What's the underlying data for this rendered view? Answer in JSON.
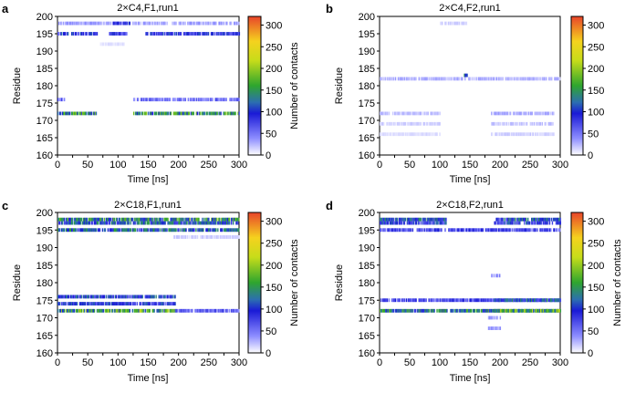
{
  "chart_data": [
    {
      "type": "heatmap",
      "panel": "a",
      "title": "2×C4,F1,run1",
      "xlabel": "Time [ns]",
      "ylabel": "Residue",
      "colorbar_label": "Number of contacts",
      "xlim": [
        0,
        300
      ],
      "ylim": [
        160,
        200
      ],
      "clim": [
        0,
        320
      ],
      "xticks": [
        0,
        25,
        50,
        75,
        100,
        125,
        150,
        175,
        200,
        225,
        250,
        275,
        300
      ],
      "xtick_labels": [
        "0",
        "50",
        "100",
        "150",
        "200",
        "250",
        "300"
      ],
      "ytick_labels": [
        "160",
        "165",
        "170",
        "175",
        "180",
        "185",
        "190",
        "195",
        "200"
      ],
      "cbar_tick_labels": [
        "0",
        "50",
        "100",
        "150",
        "200",
        "250",
        "300"
      ],
      "grid": false,
      "bands": [
        {
          "residue": 198,
          "t_start": 0,
          "t_end": 300,
          "level": 30
        },
        {
          "residue": 198,
          "t_start": 90,
          "t_end": 120,
          "level": 80
        },
        {
          "residue": 195,
          "t_start": 0,
          "t_end": 65,
          "level": 90
        },
        {
          "residue": 195,
          "t_start": 85,
          "t_end": 115,
          "level": 80
        },
        {
          "residue": 195,
          "t_start": 145,
          "t_end": 300,
          "level": 85
        },
        {
          "residue": 192,
          "t_start": 70,
          "t_end": 110,
          "level": 10
        },
        {
          "residue": 176,
          "t_start": 0,
          "t_end": 12,
          "level": 60
        },
        {
          "residue": 176,
          "t_start": 125,
          "t_end": 300,
          "level": 50
        },
        {
          "residue": 172,
          "t_start": 0,
          "t_end": 65,
          "level": 140
        },
        {
          "residue": 172,
          "t_start": 125,
          "t_end": 300,
          "level": 140
        }
      ]
    },
    {
      "type": "heatmap",
      "panel": "b",
      "title": "2×C4,F2,run1",
      "xlabel": "Time [ns]",
      "ylabel": "Residue",
      "colorbar_label": "Number of contacts",
      "xlim": [
        0,
        300
      ],
      "ylim": [
        160,
        200
      ],
      "clim": [
        0,
        320
      ],
      "xticks": [
        0,
        25,
        50,
        75,
        100,
        125,
        150,
        175,
        200,
        225,
        250,
        275,
        300
      ],
      "xtick_labels": [
        "0",
        "50",
        "100",
        "150",
        "200",
        "250",
        "300"
      ],
      "ytick_labels": [
        "160",
        "165",
        "170",
        "175",
        "180",
        "185",
        "190",
        "195",
        "200"
      ],
      "cbar_tick_labels": [
        "0",
        "50",
        "100",
        "150",
        "200",
        "250",
        "300"
      ],
      "grid": false,
      "bands": [
        {
          "residue": 198,
          "t_start": 100,
          "t_end": 145,
          "level": 15
        },
        {
          "residue": 182,
          "t_start": 0,
          "t_end": 300,
          "level": 25
        },
        {
          "residue": 183,
          "t_start": 140,
          "t_end": 145,
          "level": 110
        },
        {
          "residue": 172,
          "t_start": 0,
          "t_end": 100,
          "level": 20
        },
        {
          "residue": 172,
          "t_start": 185,
          "t_end": 290,
          "level": 25
        },
        {
          "residue": 169,
          "t_start": 0,
          "t_end": 100,
          "level": 15
        },
        {
          "residue": 169,
          "t_start": 185,
          "t_end": 290,
          "level": 20
        },
        {
          "residue": 166,
          "t_start": 0,
          "t_end": 100,
          "level": 12
        },
        {
          "residue": 166,
          "t_start": 185,
          "t_end": 290,
          "level": 15
        }
      ]
    },
    {
      "type": "heatmap",
      "panel": "c",
      "title": "2×C18,F1,run1",
      "xlabel": "Time [ns]",
      "ylabel": "Residue",
      "colorbar_label": "Number of contacts",
      "xlim": [
        0,
        300
      ],
      "ylim": [
        160,
        200
      ],
      "clim": [
        0,
        320
      ],
      "xticks": [
        0,
        25,
        50,
        75,
        100,
        125,
        150,
        175,
        200,
        225,
        250,
        275,
        300
      ],
      "xtick_labels": [
        "0",
        "50",
        "100",
        "150",
        "200",
        "250",
        "300"
      ],
      "ytick_labels": [
        "160",
        "165",
        "170",
        "175",
        "180",
        "185",
        "190",
        "195",
        "200"
      ],
      "cbar_tick_labels": [
        "0",
        "50",
        "100",
        "150",
        "200",
        "250",
        "300"
      ],
      "grid": false,
      "bands": [
        {
          "residue": 198,
          "t_start": 0,
          "t_end": 300,
          "level": 140
        },
        {
          "residue": 197,
          "t_start": 0,
          "t_end": 300,
          "level": 110
        },
        {
          "residue": 195,
          "t_start": 0,
          "t_end": 300,
          "level": 120
        },
        {
          "residue": 193,
          "t_start": 190,
          "t_end": 300,
          "level": 15
        },
        {
          "residue": 176,
          "t_start": 0,
          "t_end": 195,
          "level": 100
        },
        {
          "residue": 174,
          "t_start": 0,
          "t_end": 195,
          "level": 90
        },
        {
          "residue": 172,
          "t_start": 0,
          "t_end": 195,
          "level": 160
        },
        {
          "residue": 172,
          "t_start": 195,
          "t_end": 300,
          "level": 60
        }
      ]
    },
    {
      "type": "heatmap",
      "panel": "d",
      "title": "2×C18,F2,run1",
      "xlabel": "Time [ns]",
      "ylabel": "Residue",
      "colorbar_label": "Number of contacts",
      "xlim": [
        0,
        300
      ],
      "ylim": [
        160,
        200
      ],
      "clim": [
        0,
        320
      ],
      "xticks": [
        0,
        25,
        50,
        75,
        100,
        125,
        150,
        175,
        200,
        225,
        250,
        275,
        300
      ],
      "xtick_labels": [
        "0",
        "50",
        "100",
        "150",
        "200",
        "250",
        "300"
      ],
      "ytick_labels": [
        "160",
        "165",
        "170",
        "175",
        "180",
        "185",
        "190",
        "195",
        "200"
      ],
      "cbar_tick_labels": [
        "0",
        "50",
        "100",
        "150",
        "200",
        "250",
        "300"
      ],
      "grid": false,
      "bands": [
        {
          "residue": 198,
          "t_start": 0,
          "t_end": 110,
          "level": 110
        },
        {
          "residue": 198,
          "t_start": 190,
          "t_end": 300,
          "level": 110
        },
        {
          "residue": 197,
          "t_start": 0,
          "t_end": 110,
          "level": 90
        },
        {
          "residue": 197,
          "t_start": 190,
          "t_end": 300,
          "level": 90
        },
        {
          "residue": 195,
          "t_start": 0,
          "t_end": 300,
          "level": 70
        },
        {
          "residue": 182,
          "t_start": 185,
          "t_end": 200,
          "level": 40
        },
        {
          "residue": 175,
          "t_start": 0,
          "t_end": 300,
          "level": 70
        },
        {
          "residue": 175,
          "t_start": 190,
          "t_end": 300,
          "level": 110
        },
        {
          "residue": 172,
          "t_start": 0,
          "t_end": 300,
          "level": 130
        },
        {
          "residue": 172,
          "t_start": 190,
          "t_end": 300,
          "level": 170
        },
        {
          "residue": 170,
          "t_start": 180,
          "t_end": 200,
          "level": 30
        },
        {
          "residue": 167,
          "t_start": 180,
          "t_end": 200,
          "level": 30
        }
      ]
    }
  ]
}
